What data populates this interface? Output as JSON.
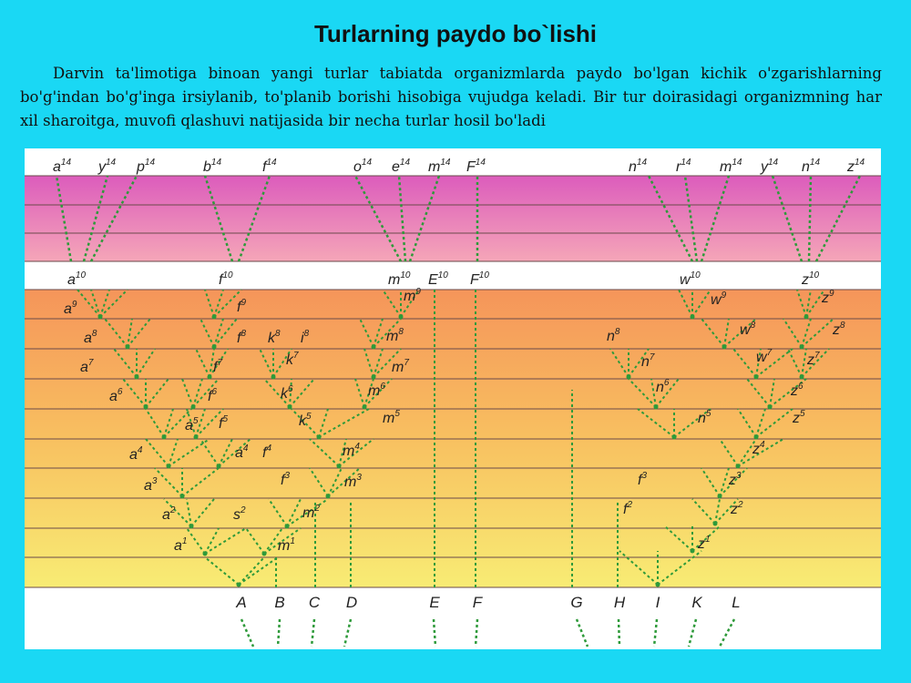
{
  "header": {
    "title": "Turlarning paydo bo`lishi"
  },
  "body": {
    "paragraph": "Darvin ta'limotiga binoan yangi turlar tabiatda organizmlarda paydo bo'lgan kichik o'zgarishlarning bo'g'indan bo'g'inga irsiylanib, to'planib borishi hisobiga vujudga keladi. Bir tur doirasidagi organizmning har xil sharoitga, muvofi qlashuvi natijasida bir necha turlar hosil bo'ladi"
  },
  "diagram": {
    "top_labels": [
      {
        "letter": "a",
        "sup": "14"
      },
      {
        "letter": "y",
        "sup": "14"
      },
      {
        "letter": "p",
        "sup": "14"
      },
      {
        "letter": "b",
        "sup": "14"
      },
      {
        "letter": "f",
        "sup": "14"
      },
      {
        "letter": "o",
        "sup": "14"
      },
      {
        "letter": "e",
        "sup": "14"
      },
      {
        "letter": "m",
        "sup": "14"
      },
      {
        "letter": "F",
        "sup": "14"
      },
      {
        "letter": "n",
        "sup": "14"
      },
      {
        "letter": "r",
        "sup": "14"
      },
      {
        "letter": "m",
        "sup": "14"
      },
      {
        "letter": "y",
        "sup": "14"
      },
      {
        "letter": "n",
        "sup": "14"
      },
      {
        "letter": "z",
        "sup": "14"
      }
    ],
    "row10_labels": [
      {
        "letter": "a",
        "sup": "10"
      },
      {
        "letter": "f",
        "sup": "10"
      },
      {
        "letter": "m",
        "sup": "10"
      },
      {
        "letter": "E",
        "sup": "10"
      },
      {
        "letter": "F",
        "sup": "10"
      },
      {
        "letter": "w",
        "sup": "10"
      },
      {
        "letter": "z",
        "sup": "10"
      }
    ],
    "branch_labels": [
      {
        "letter": "a",
        "sup": "9"
      },
      {
        "letter": "f",
        "sup": "9"
      },
      {
        "letter": "m",
        "sup": "9"
      },
      {
        "letter": "w",
        "sup": "9"
      },
      {
        "letter": "z",
        "sup": "9"
      },
      {
        "letter": "a",
        "sup": "8"
      },
      {
        "letter": "f",
        "sup": "8"
      },
      {
        "letter": "k",
        "sup": "8"
      },
      {
        "letter": "i",
        "sup": "8"
      },
      {
        "letter": "m",
        "sup": "8"
      },
      {
        "letter": "n",
        "sup": "8"
      },
      {
        "letter": "w",
        "sup": "8"
      },
      {
        "letter": "z",
        "sup": "8"
      },
      {
        "letter": "a",
        "sup": "7"
      },
      {
        "letter": "f",
        "sup": "7"
      },
      {
        "letter": "k",
        "sup": "7"
      },
      {
        "letter": "m",
        "sup": "7"
      },
      {
        "letter": "n",
        "sup": "7"
      },
      {
        "letter": "w",
        "sup": "7"
      },
      {
        "letter": "z",
        "sup": "7"
      },
      {
        "letter": "a",
        "sup": "6"
      },
      {
        "letter": "f",
        "sup": "6"
      },
      {
        "letter": "k",
        "sup": "6"
      },
      {
        "letter": "m",
        "sup": "6"
      },
      {
        "letter": "n",
        "sup": "6"
      },
      {
        "letter": "z",
        "sup": "6"
      },
      {
        "letter": "a",
        "sup": "5"
      },
      {
        "letter": "f",
        "sup": "5"
      },
      {
        "letter": "k",
        "sup": "5"
      },
      {
        "letter": "m",
        "sup": "5"
      },
      {
        "letter": "n",
        "sup": "5"
      },
      {
        "letter": "z",
        "sup": "5"
      },
      {
        "letter": "a",
        "sup": "4"
      },
      {
        "letter": "a",
        "sup": "4"
      },
      {
        "letter": "f",
        "sup": "4"
      },
      {
        "letter": "m",
        "sup": "4"
      },
      {
        "letter": "z",
        "sup": "4"
      },
      {
        "letter": "a",
        "sup": "3"
      },
      {
        "letter": "f",
        "sup": "3"
      },
      {
        "letter": "m",
        "sup": "3"
      },
      {
        "letter": "f",
        "sup": "3"
      },
      {
        "letter": "z",
        "sup": "3"
      },
      {
        "letter": "a",
        "sup": "2"
      },
      {
        "letter": "s",
        "sup": "2"
      },
      {
        "letter": "m",
        "sup": "2"
      },
      {
        "letter": "f",
        "sup": "2"
      },
      {
        "letter": "z",
        "sup": "2"
      },
      {
        "letter": "a",
        "sup": "1"
      },
      {
        "letter": "m",
        "sup": "1"
      },
      {
        "letter": "z",
        "sup": "1"
      }
    ],
    "bottom_labels": [
      "A",
      "B",
      "C",
      "D",
      "E",
      "F",
      "G",
      "H",
      "I",
      "K",
      "L"
    ]
  }
}
